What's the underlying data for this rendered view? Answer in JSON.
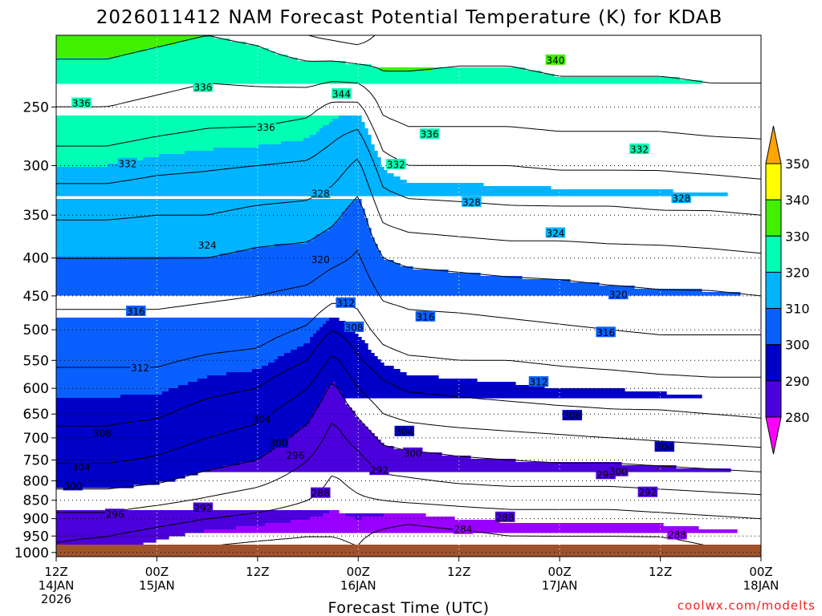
{
  "title": "2026011412 NAM Forecast Potential Temperature (K) for KDAB",
  "credit": "coolwx.com/modelts",
  "chart_data": {
    "type": "heatmap",
    "title": "2026011412 NAM Forecast Potential Temperature (K) for KDAB",
    "xlabel": "Forecast Time (UTC)",
    "ylabel": "",
    "x_ticks": [
      {
        "hours": 0,
        "line1": "12Z",
        "line2": "14JAN",
        "line3": "2026"
      },
      {
        "hours": 12,
        "line1": "00Z",
        "line2": "15JAN",
        "line3": ""
      },
      {
        "hours": 24,
        "line1": "12Z",
        "line2": "",
        "line3": ""
      },
      {
        "hours": 36,
        "line1": "00Z",
        "line2": "16JAN",
        "line3": ""
      },
      {
        "hours": 48,
        "line1": "12Z",
        "line2": "",
        "line3": ""
      },
      {
        "hours": 60,
        "line1": "00Z",
        "line2": "17JAN",
        "line3": ""
      },
      {
        "hours": 72,
        "line1": "12Z",
        "line2": "",
        "line3": ""
      },
      {
        "hours": 84,
        "line1": "00Z",
        "line2": "18JAN",
        "line3": ""
      }
    ],
    "x_range_hours": [
      0,
      84
    ],
    "y_ticks_hPa": [
      250,
      300,
      350,
      400,
      450,
      500,
      550,
      600,
      650,
      700,
      750,
      800,
      850,
      900,
      950,
      1000
    ],
    "y_range_hPa": [
      1013,
      200
    ],
    "y_scale": "log",
    "grid": true,
    "colorbar": {
      "labels": [
        "280",
        "290",
        "300",
        "310",
        "320",
        "330",
        "340",
        "350"
      ],
      "colors": [
        "#ff00ff",
        "#9a00ff",
        "#4b00dc",
        "#0000c8",
        "#0a60ff",
        "#00b4ff",
        "#00ffb4",
        "#40f000",
        "#ffff00",
        "#ffa500"
      ]
    },
    "contour_interval_K": 4,
    "ground_color": "#a0522d",
    "profiles_hours": [
      0,
      6,
      12,
      18,
      24,
      30,
      33,
      36,
      39,
      42,
      48,
      54,
      60,
      66,
      72,
      78,
      84
    ],
    "theta_profiles": [
      {
        "hours": 0,
        "p": [
          1013,
          950,
          900,
          850,
          800,
          750,
          700,
          650,
          600,
          550,
          500,
          450,
          400,
          350,
          300,
          250,
          200
        ],
        "theta": [
          291,
          292.5,
          295,
          298,
          301.5,
          304.5,
          307,
          309,
          310.5,
          312.5,
          314.5,
          317,
          320,
          324.5,
          330,
          336,
          342
        ]
      },
      {
        "hours": 6,
        "p": [
          1013,
          950,
          900,
          850,
          800,
          750,
          700,
          650,
          600,
          550,
          500,
          450,
          400,
          350,
          300,
          250,
          200
        ],
        "theta": [
          290,
          292,
          295,
          298,
          301.5,
          304.5,
          307,
          309,
          310.5,
          312.5,
          314.5,
          317,
          320,
          324.5,
          330,
          336,
          342
        ]
      },
      {
        "hours": 12,
        "p": [
          1013,
          950,
          900,
          850,
          800,
          750,
          700,
          650,
          600,
          550,
          500,
          450,
          400,
          350,
          300,
          250,
          200
        ],
        "theta": [
          288,
          290.5,
          293.5,
          297,
          300.5,
          303.5,
          306,
          308.5,
          310.5,
          312.5,
          314.5,
          317,
          320,
          324,
          329,
          335,
          341
        ]
      },
      {
        "hours": 18,
        "p": [
          1013,
          950,
          900,
          850,
          800,
          750,
          700,
          650,
          600,
          550,
          500,
          450,
          400,
          350,
          300,
          250,
          200
        ],
        "theta": [
          287,
          289,
          292,
          295.5,
          298.5,
          301.5,
          304,
          306.5,
          309,
          311.5,
          314,
          316.5,
          320,
          324,
          328.5,
          334,
          340
        ]
      },
      {
        "hours": 24,
        "p": [
          1013,
          950,
          900,
          850,
          800,
          750,
          700,
          650,
          600,
          550,
          500,
          450,
          400,
          350,
          300,
          250,
          200
        ],
        "theta": [
          286.5,
          288.5,
          291,
          294,
          297,
          300,
          302.5,
          305,
          308,
          311,
          313.5,
          316,
          319,
          323,
          328,
          334,
          341
        ]
      },
      {
        "hours": 30,
        "p": [
          1013,
          950,
          900,
          850,
          800,
          750,
          700,
          650,
          600,
          550,
          500,
          450,
          400,
          350,
          300,
          250,
          200
        ],
        "theta": [
          286.5,
          288,
          290,
          292,
          294,
          296,
          298.5,
          301,
          304,
          308,
          311.5,
          315,
          318.5,
          322.5,
          327.5,
          333,
          344
        ]
      },
      {
        "hours": 33,
        "p": [
          1013,
          950,
          900,
          850,
          800,
          750,
          700,
          650,
          600,
          550,
          500,
          450,
          400,
          350,
          300,
          250,
          200
        ],
        "theta": [
          287,
          288,
          289.5,
          290.5,
          291.5,
          293,
          294.5,
          296.5,
          299,
          303,
          308,
          313,
          317,
          321,
          326,
          331,
          345
        ]
      },
      {
        "hours": 36,
        "p": [
          1013,
          950,
          900,
          850,
          800,
          750,
          700,
          650,
          600,
          550,
          500,
          450,
          400,
          350,
          300,
          250,
          200
        ],
        "theta": [
          287.5,
          288.5,
          290,
          291.5,
          293,
          295,
          297.5,
          300.5,
          304,
          307.5,
          310.5,
          313,
          315.5,
          318,
          323,
          331,
          346
        ]
      },
      {
        "hours": 39,
        "p": [
          1013,
          950,
          900,
          850,
          800,
          750,
          700,
          650,
          600,
          550,
          500,
          450,
          400,
          350,
          300,
          250,
          200
        ],
        "theta": [
          285,
          287,
          289.5,
          292,
          295,
          298,
          301,
          304,
          307,
          310.5,
          313.5,
          316.5,
          320,
          325,
          330.5,
          337,
          343
        ]
      },
      {
        "hours": 42,
        "p": [
          1013,
          950,
          900,
          850,
          800,
          750,
          700,
          650,
          600,
          550,
          500,
          450,
          400,
          350,
          300,
          250,
          200
        ],
        "theta": [
          283,
          286,
          289,
          292.5,
          295.5,
          298.5,
          302,
          305,
          308.5,
          311.5,
          314.5,
          317,
          321,
          326,
          332,
          338,
          342
        ]
      },
      {
        "hours": 48,
        "p": [
          1013,
          950,
          900,
          850,
          800,
          750,
          700,
          650,
          600,
          550,
          500,
          450,
          400,
          350,
          300,
          250,
          200
        ],
        "theta": [
          284,
          287,
          290,
          293,
          296.5,
          299.5,
          302.5,
          306,
          309,
          312,
          314.5,
          317.5,
          321.5,
          326.5,
          332,
          338,
          341.5
        ]
      },
      {
        "hours": 54,
        "p": [
          1013,
          950,
          900,
          850,
          800,
          750,
          700,
          650,
          600,
          550,
          500,
          450,
          400,
          350,
          300,
          250,
          200
        ],
        "theta": [
          285,
          288,
          290.5,
          293.5,
          297,
          300,
          303,
          306.5,
          309.5,
          312,
          315,
          318,
          322,
          327,
          332,
          338,
          341.5
        ]
      },
      {
        "hours": 60,
        "p": [
          1013,
          950,
          900,
          850,
          800,
          750,
          700,
          650,
          600,
          550,
          500,
          450,
          400,
          350,
          300,
          250,
          200
        ],
        "theta": [
          285.5,
          288,
          290.5,
          293.5,
          297,
          300.5,
          303.5,
          307,
          310,
          312.5,
          315.5,
          318.5,
          322,
          327,
          332.5,
          338.5,
          342
        ]
      },
      {
        "hours": 66,
        "p": [
          1013,
          950,
          900,
          850,
          800,
          750,
          700,
          650,
          600,
          550,
          500,
          450,
          400,
          350,
          300,
          250,
          200
        ],
        "theta": [
          285.5,
          288,
          290.5,
          293.5,
          297,
          300.5,
          304,
          307.5,
          310,
          313,
          316,
          319,
          322.5,
          327,
          332.5,
          338.5,
          342
        ]
      },
      {
        "hours": 72,
        "p": [
          1013,
          950,
          900,
          850,
          800,
          750,
          700,
          650,
          600,
          550,
          500,
          450,
          400,
          350,
          300,
          250,
          200
        ],
        "theta": [
          286,
          288,
          291,
          294,
          297.5,
          301,
          304.5,
          307.5,
          310.5,
          313.5,
          316.5,
          319.5,
          322.5,
          327.5,
          332.5,
          338.5,
          342
        ]
      },
      {
        "hours": 78,
        "p": [
          1013,
          950,
          900,
          850,
          800,
          750,
          700,
          650,
          600,
          550,
          500,
          450,
          400,
          350,
          300,
          250,
          200
        ],
        "theta": [
          287,
          289,
          291.5,
          294.5,
          298,
          301.5,
          305,
          308,
          311,
          313.5,
          316.5,
          319.5,
          323,
          327.5,
          333,
          339,
          342
        ]
      },
      {
        "hours": 84,
        "p": [
          1013,
          950,
          900,
          850,
          800,
          750,
          700,
          650,
          600,
          550,
          500,
          450,
          400,
          350,
          300,
          250,
          200
        ],
        "theta": [
          287.5,
          289.5,
          292,
          295,
          298.5,
          302,
          305.5,
          308.5,
          311,
          313.5,
          316.5,
          320,
          323.5,
          328,
          333.5,
          339,
          342
        ]
      }
    ],
    "contour_labels": [
      {
        "hours": 3,
        "p": 247,
        "text": "336"
      },
      {
        "hours": 17.5,
        "p": 235,
        "text": "336"
      },
      {
        "hours": 8.5,
        "p": 298,
        "text": "332"
      },
      {
        "hours": 25,
        "p": 266,
        "text": "336"
      },
      {
        "hours": 34,
        "p": 240,
        "text": "344"
      },
      {
        "hours": 44.5,
        "p": 272,
        "text": "336"
      },
      {
        "hours": 40.5,
        "p": 299,
        "text": "332"
      },
      {
        "hours": 59.5,
        "p": 216,
        "text": "340"
      },
      {
        "hours": 69.5,
        "p": 285,
        "text": "332"
      },
      {
        "hours": 31.5,
        "p": 327,
        "text": "328"
      },
      {
        "hours": 49.5,
        "p": 336,
        "text": "328"
      },
      {
        "hours": 74.5,
        "p": 332,
        "text": "328"
      },
      {
        "hours": 18,
        "p": 384,
        "text": "324"
      },
      {
        "hours": 59.5,
        "p": 370,
        "text": "324"
      },
      {
        "hours": 31.5,
        "p": 402,
        "text": "320"
      },
      {
        "hours": 67,
        "p": 448,
        "text": "320"
      },
      {
        "hours": 9.5,
        "p": 472,
        "text": "316"
      },
      {
        "hours": 34.5,
        "p": 460,
        "text": "312"
      },
      {
        "hours": 44,
        "p": 480,
        "text": "316"
      },
      {
        "hours": 65.5,
        "p": 504,
        "text": "316"
      },
      {
        "hours": 35.5,
        "p": 496,
        "text": "308"
      },
      {
        "hours": 10,
        "p": 563,
        "text": "312"
      },
      {
        "hours": 57.5,
        "p": 588,
        "text": "312"
      },
      {
        "hours": 24.5,
        "p": 660,
        "text": "304"
      },
      {
        "hours": 61.5,
        "p": 653,
        "text": "308"
      },
      {
        "hours": 5.5,
        "p": 690,
        "text": "308"
      },
      {
        "hours": 41.5,
        "p": 686,
        "text": "304"
      },
      {
        "hours": 26.5,
        "p": 711,
        "text": "300"
      },
      {
        "hours": 28.5,
        "p": 739,
        "text": "296"
      },
      {
        "hours": 42.5,
        "p": 734,
        "text": "300"
      },
      {
        "hours": 72.5,
        "p": 720,
        "text": "304"
      },
      {
        "hours": 3,
        "p": 766,
        "text": "304"
      },
      {
        "hours": 38.5,
        "p": 774,
        "text": "292"
      },
      {
        "hours": 65.5,
        "p": 784,
        "text": "296"
      },
      {
        "hours": 67,
        "p": 777,
        "text": "300"
      },
      {
        "hours": 2,
        "p": 812,
        "text": "300"
      },
      {
        "hours": 31.5,
        "p": 831,
        "text": "288"
      },
      {
        "hours": 70.5,
        "p": 829,
        "text": "292"
      },
      {
        "hours": 7,
        "p": 888,
        "text": "296"
      },
      {
        "hours": 17.5,
        "p": 871,
        "text": "292"
      },
      {
        "hours": 53.5,
        "p": 896,
        "text": "288"
      },
      {
        "hours": 48.5,
        "p": 930,
        "text": "284"
      },
      {
        "hours": 74,
        "p": 946,
        "text": "288"
      }
    ]
  }
}
